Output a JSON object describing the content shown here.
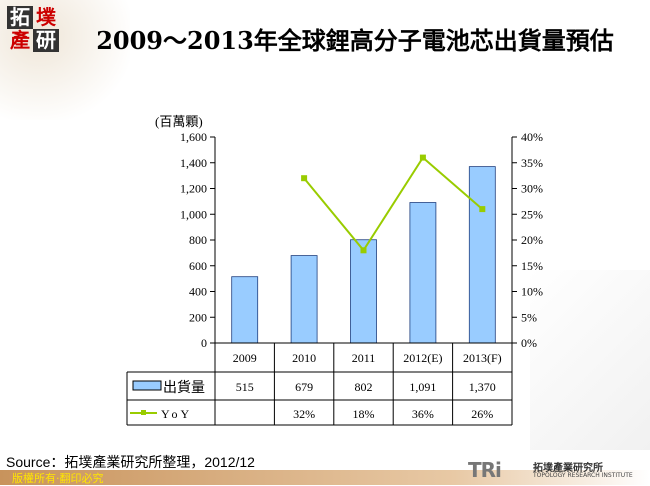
{
  "logo": {
    "chars": [
      "拓",
      "墣",
      "產",
      "研"
    ]
  },
  "title": "2009～2013年全球鋰高分子電池芯出貨量預估",
  "chart_data": {
    "type": "bar",
    "categories": [
      "2009",
      "2010",
      "2011",
      "2012(E)",
      "2013(F)"
    ],
    "ylabel": "(百萬顆)",
    "ylim": [
      0,
      1600
    ],
    "yticks": [
      "0",
      "200",
      "400",
      "600",
      "800",
      "1,000",
      "1,200",
      "1,400",
      "1,600"
    ],
    "y2lim": [
      0,
      40
    ],
    "y2ticks": [
      "0%",
      "5%",
      "10%",
      "15%",
      "20%",
      "25%",
      "30%",
      "35%",
      "40%"
    ],
    "series": [
      {
        "name": "出貨量",
        "type": "bar",
        "values": [
          515,
          679,
          802,
          1091,
          1370
        ],
        "labels": [
          "515",
          "679",
          "802",
          "1,091",
          "1,370"
        ],
        "color": "#99ccff"
      },
      {
        "name": "YoY",
        "type": "line",
        "axis": "right",
        "values": [
          null,
          32,
          18,
          36,
          26
        ],
        "labels": [
          "",
          "32%",
          "18%",
          "36%",
          "26%"
        ],
        "color": "#99cc00"
      }
    ],
    "grid": false,
    "legend": "data-table"
  },
  "source": "Source：拓墣產業研究所整理，2012/12",
  "copyright": "版權所有‧翻印必究",
  "brand": {
    "mark": "TRi",
    "name": "拓墣產業研究所",
    "sub": "TOPOLOGY RESEARCH INSTITUTE"
  }
}
